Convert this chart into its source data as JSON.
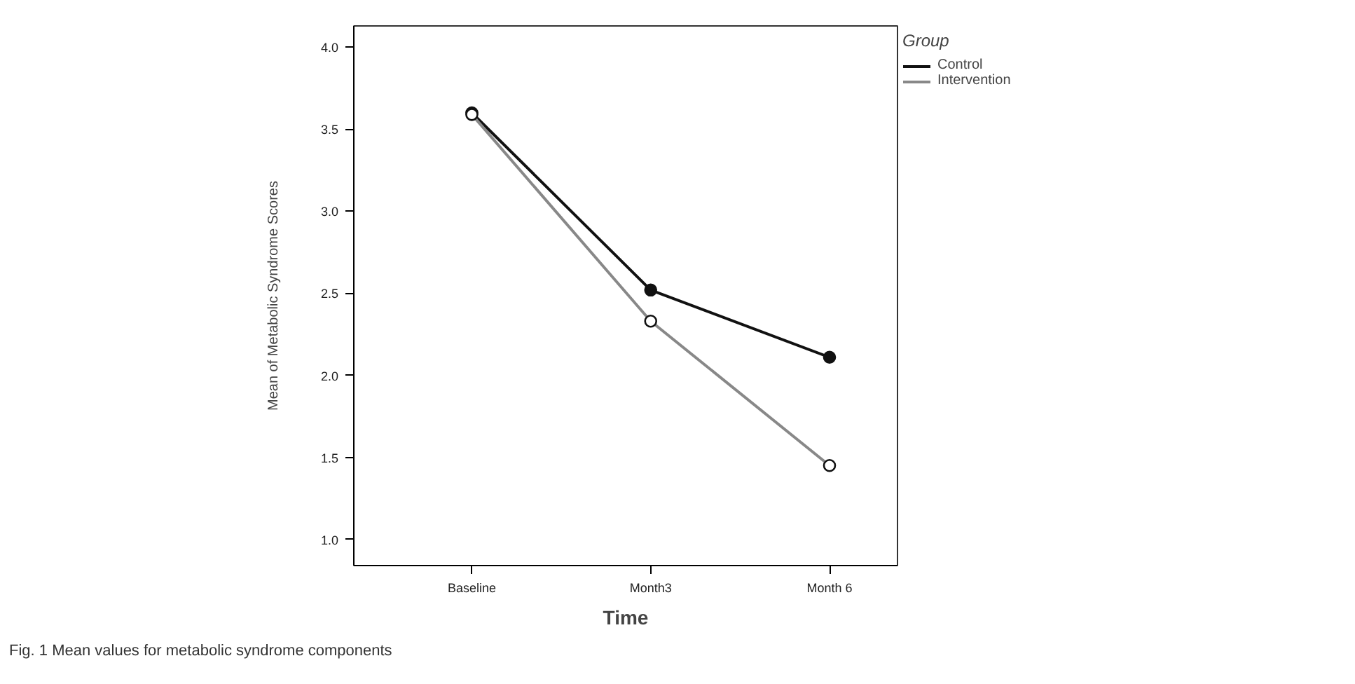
{
  "chart_data": {
    "type": "line",
    "xlabel": "Time",
    "ylabel": "Mean of Metabolic Syndrome Scores",
    "legend_title": "Group",
    "categories": [
      "Baseline",
      "Month3",
      "Month 6"
    ],
    "series": [
      {
        "name": "Control",
        "color": "#111111",
        "values": [
          3.6,
          2.52,
          2.11
        ]
      },
      {
        "name": "Intervention",
        "color": "#888888",
        "values": [
          3.59,
          2.33,
          1.45
        ]
      }
    ],
    "ylim": [
      0.84,
      4.13
    ],
    "yticks": [
      {
        "value": 1,
        "label": "1.0"
      },
      {
        "value": 1.5,
        "label": "1.5"
      },
      {
        "value": 2,
        "label": "2.0"
      },
      {
        "value": 2.5,
        "label": "2.5"
      },
      {
        "value": 3,
        "label": "3.0"
      },
      {
        "value": 3.5,
        "label": "3.5"
      },
      {
        "value": 4,
        "label": "4.0"
      }
    ],
    "grid": false,
    "legend": "top right",
    "marker": "circle",
    "line_style": "solid",
    "annotations": [
      "Fig. 1 Mean values for metabolic syndrome components"
    ]
  }
}
